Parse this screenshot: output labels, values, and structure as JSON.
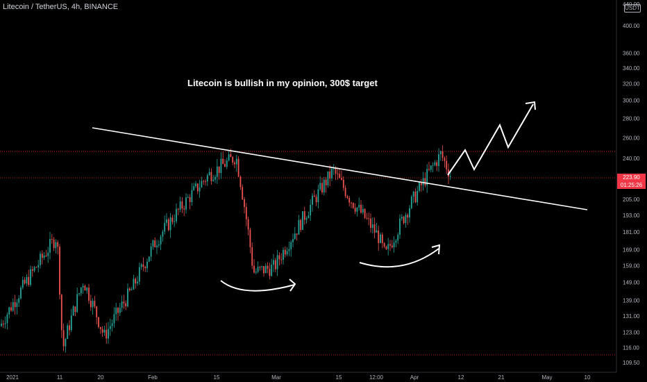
{
  "symbol_label": "Litecoin / TetherUS, 4h, BINANCE",
  "currency_label": "USDT",
  "annotation": "Litecoin is bullish in my opinion, 300$ target",
  "price_badge": {
    "price": "223.90",
    "countdown": "01:25:26"
  },
  "colors": {
    "up": "#26a69a",
    "down": "#ef5350",
    "background": "#000000",
    "trendline": "#ffffff",
    "dotted_line": "#b71c1c"
  },
  "chart_data": {
    "type": "candlestick",
    "title": "",
    "y_scale": "log",
    "y_ticks": [
      "440.00",
      "400.00",
      "360.00",
      "340.00",
      "320.00",
      "300.00",
      "280.00",
      "260.00",
      "240.00",
      "223.90",
      "205.00",
      "193.00",
      "181.00",
      "169.00",
      "159.00",
      "149.00",
      "139.00",
      "131.00",
      "123.00",
      "116.00",
      "109.50"
    ],
    "x_ticks": [
      "2021",
      "11",
      "20",
      "Feb",
      "15",
      "Mar",
      "15",
      "12:00",
      "Apr",
      "12",
      "21",
      "May",
      "10"
    ],
    "price_path": [
      {
        "x": "2021",
        "price": 126
      },
      {
        "x": "11",
        "price": 160
      },
      {
        "x": "11",
        "price": 178
      },
      {
        "x": "11",
        "price": 115
      },
      {
        "x": "20",
        "price": 150
      },
      {
        "x": "20",
        "price": 121
      },
      {
        "x": "Feb",
        "price": 145
      },
      {
        "x": "Feb",
        "price": 175
      },
      {
        "x": "15",
        "price": 225
      },
      {
        "x": "15",
        "price": 242
      },
      {
        "x": "15",
        "price": 155
      },
      {
        "x": "Mar",
        "price": 158
      },
      {
        "x": "Mar",
        "price": 185
      },
      {
        "x": "15",
        "price": 229
      },
      {
        "x": "15",
        "price": 205
      },
      {
        "x": "12:00",
        "price": 178
      },
      {
        "x": "12:00",
        "price": 165
      },
      {
        "x": "Apr",
        "price": 200
      },
      {
        "x": "Apr",
        "price": 244
      },
      {
        "x": "Apr",
        "price": 224
      }
    ],
    "last_price": 223.9,
    "target": 300
  }
}
